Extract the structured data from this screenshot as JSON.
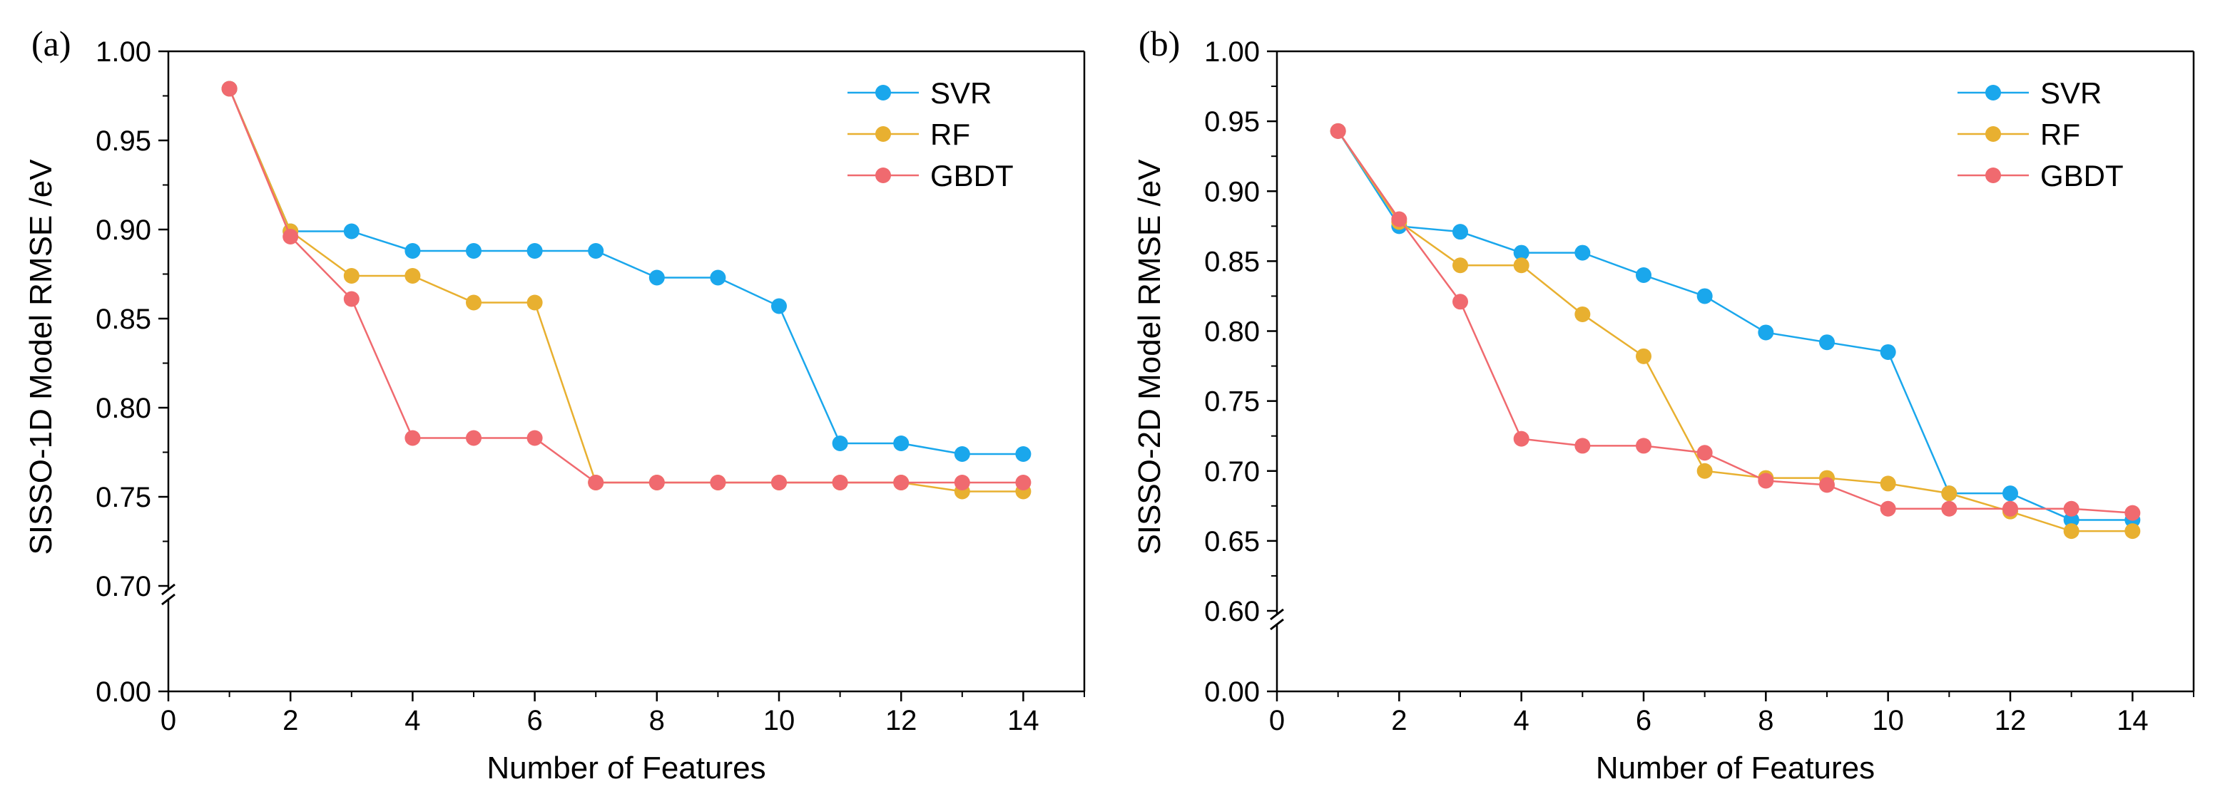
{
  "chart_data": [
    {
      "type": "line",
      "panel_label": "(a)",
      "title": "",
      "xlabel": "Number of Features",
      "ylabel": "SISSO-1D Model RMSE /eV",
      "xlim": [
        0,
        15
      ],
      "x_ticks": [
        0,
        2,
        4,
        6,
        8,
        10,
        12,
        14
      ],
      "x_tick_labels": [
        "0",
        "2",
        "4",
        "6",
        "8",
        "10",
        "12",
        "14"
      ],
      "ylim": [
        0.7,
        1.0
      ],
      "y_ticks": [
        0.7,
        0.75,
        0.8,
        0.85,
        0.9,
        0.95,
        1.0
      ],
      "y_tick_labels": [
        "0.70",
        "0.75",
        "0.80",
        "0.85",
        "0.90",
        "0.95",
        "1.00"
      ],
      "y_break_label": "0.00",
      "axis_break": true,
      "legend_position": "top-right",
      "grid": false,
      "x": [
        1,
        2,
        3,
        4,
        5,
        6,
        7,
        8,
        9,
        10,
        11,
        12,
        13,
        14
      ],
      "series": [
        {
          "name": "SVR",
          "color": "#1aa7ec",
          "values": [
            0.979,
            0.899,
            0.899,
            0.888,
            0.888,
            0.888,
            0.888,
            0.873,
            0.873,
            0.857,
            0.78,
            0.78,
            0.774,
            0.774
          ]
        },
        {
          "name": "RF",
          "color": "#e8b030",
          "values": [
            0.979,
            0.899,
            0.874,
            0.874,
            0.859,
            0.859,
            0.758,
            0.758,
            0.758,
            0.758,
            0.758,
            0.758,
            0.753,
            0.753
          ]
        },
        {
          "name": "GBDT",
          "color": "#f06a6f",
          "values": [
            0.979,
            0.896,
            0.861,
            0.783,
            0.783,
            0.783,
            0.758,
            0.758,
            0.758,
            0.758,
            0.758,
            0.758,
            0.758,
            0.758
          ]
        }
      ]
    },
    {
      "type": "line",
      "panel_label": "(b)",
      "title": "",
      "xlabel": "Number of Features",
      "ylabel": "SISSO-2D Model RMSE /eV",
      "xlim": [
        0,
        15
      ],
      "x_ticks": [
        0,
        2,
        4,
        6,
        8,
        10,
        12,
        14
      ],
      "x_tick_labels": [
        "0",
        "2",
        "4",
        "6",
        "8",
        "10",
        "12",
        "14"
      ],
      "ylim": [
        0.6,
        1.0
      ],
      "y_ticks": [
        0.6,
        0.65,
        0.7,
        0.75,
        0.8,
        0.85,
        0.9,
        0.95,
        1.0
      ],
      "y_tick_labels": [
        "0.60",
        "0.65",
        "0.70",
        "0.75",
        "0.80",
        "0.85",
        "0.90",
        "0.95",
        "1.00"
      ],
      "y_break_label": "0.00",
      "axis_break": true,
      "legend_position": "top-right",
      "grid": false,
      "x": [
        1,
        2,
        3,
        4,
        5,
        6,
        7,
        8,
        9,
        10,
        11,
        12,
        13,
        14
      ],
      "series": [
        {
          "name": "SVR",
          "color": "#1aa7ec",
          "values": [
            0.943,
            0.875,
            0.871,
            0.856,
            0.856,
            0.84,
            0.825,
            0.799,
            0.792,
            0.785,
            0.684,
            0.684,
            0.665,
            0.665
          ]
        },
        {
          "name": "RF",
          "color": "#e8b030",
          "values": [
            0.943,
            0.878,
            0.847,
            0.847,
            0.812,
            0.782,
            0.7,
            0.695,
            0.695,
            0.691,
            0.684,
            0.671,
            0.657,
            0.657
          ]
        },
        {
          "name": "GBDT",
          "color": "#f06a6f",
          "values": [
            0.943,
            0.88,
            0.821,
            0.723,
            0.718,
            0.718,
            0.713,
            0.693,
            0.69,
            0.673,
            0.673,
            0.673,
            0.673,
            0.67
          ]
        }
      ]
    }
  ]
}
